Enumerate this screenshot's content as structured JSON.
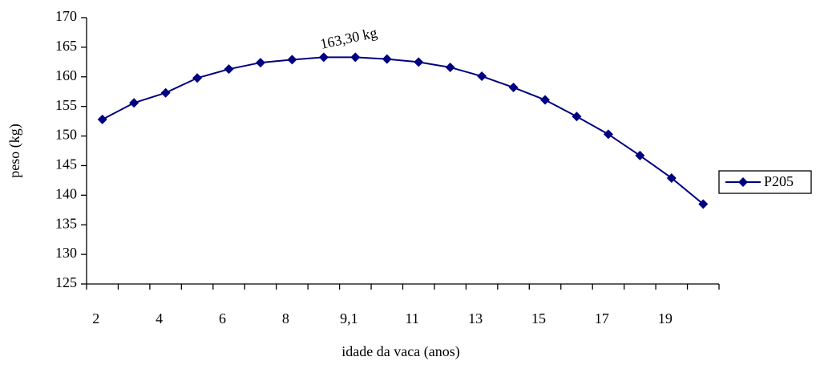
{
  "chart_data": {
    "type": "line",
    "x_label": "idade da vaca (anos)",
    "y_label": "peso (kg)",
    "annotation": "163,30 kg",
    "categories": [
      "2",
      null,
      "4",
      null,
      "6",
      null,
      "8",
      null,
      "9,1",
      null,
      "11",
      null,
      "13",
      null,
      "15",
      null,
      "17",
      null,
      "19",
      null
    ],
    "series": [
      {
        "name": "P205",
        "color": "#000080",
        "values": [
          152.8,
          155.6,
          157.3,
          159.8,
          161.3,
          162.4,
          162.9,
          163.3,
          163.3,
          163.0,
          162.5,
          161.6,
          160.1,
          158.2,
          156.1,
          153.3,
          150.3,
          146.7,
          142.9,
          138.5
        ]
      }
    ],
    "ylim": [
      125,
      170
    ],
    "yticks": [
      125,
      130,
      135,
      140,
      145,
      150,
      155,
      160,
      165,
      170
    ],
    "grid": false,
    "legend": "right"
  }
}
